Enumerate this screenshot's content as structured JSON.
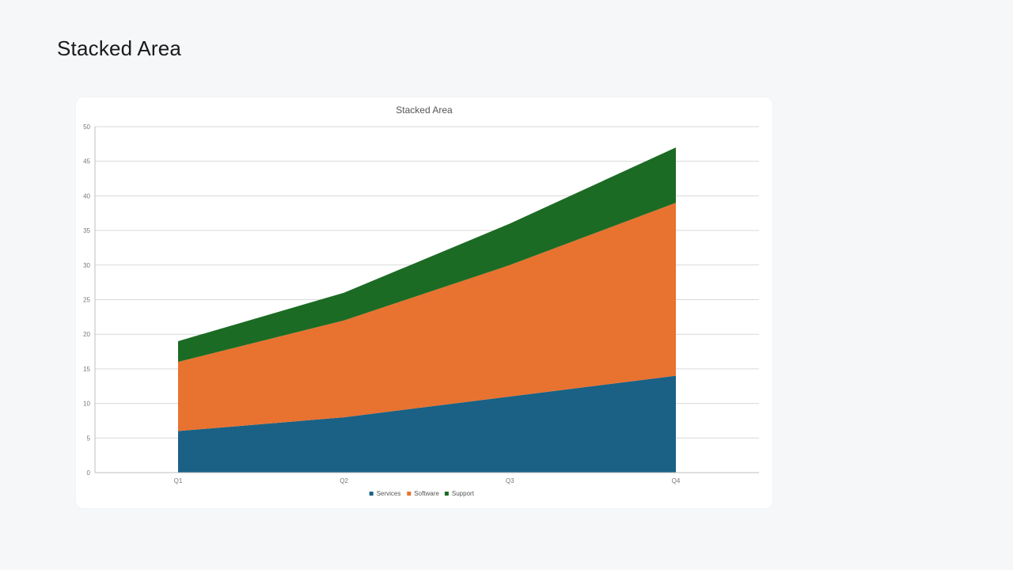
{
  "page": {
    "title": "Stacked Area"
  },
  "chart_data": {
    "type": "area",
    "stacked": true,
    "title": "Stacked Area",
    "xlabel": "",
    "ylabel": "",
    "categories": [
      "Q1",
      "Q2",
      "Q3",
      "Q4"
    ],
    "ylim": [
      0,
      50
    ],
    "yticks": [
      0,
      5,
      10,
      15,
      20,
      25,
      30,
      35,
      40,
      45,
      50
    ],
    "grid": true,
    "legend_position": "bottom",
    "series": [
      {
        "name": "Services",
        "values": [
          6,
          8,
          11,
          14
        ],
        "color": "#1a6185"
      },
      {
        "name": "Software",
        "values": [
          10,
          14,
          19,
          25
        ],
        "color": "#e87230"
      },
      {
        "name": "Support",
        "values": [
          3,
          4,
          6,
          8
        ],
        "color": "#1c6b24"
      }
    ]
  }
}
